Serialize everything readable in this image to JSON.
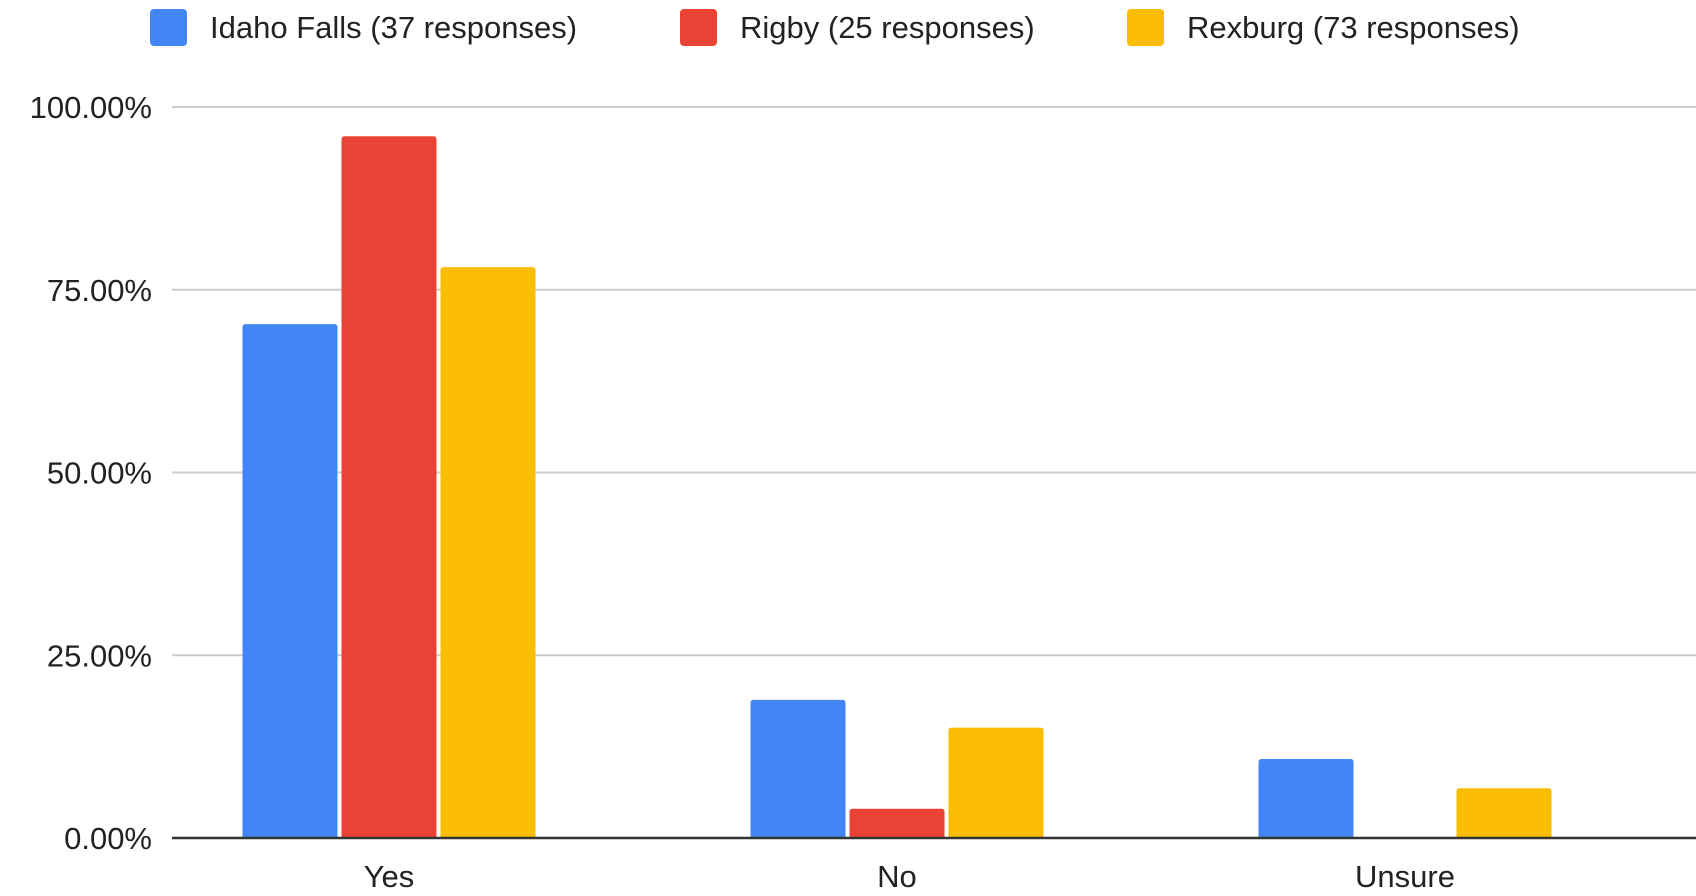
{
  "chart_data": {
    "type": "bar",
    "title": "",
    "xlabel": "",
    "ylabel": "",
    "categories": [
      "Yes",
      "No",
      "Unsure"
    ],
    "series": [
      {
        "name": "Idaho Falls (37 responses)",
        "color": "#4285f4",
        "values": [
          70.3,
          18.9,
          10.8
        ]
      },
      {
        "name": "Rigby (25 responses)",
        "color": "#ea4335",
        "values": [
          96.0,
          4.0,
          0.0
        ]
      },
      {
        "name": "Rexburg (73 responses)",
        "color": "#fbbc04",
        "values": [
          78.1,
          15.1,
          6.8
        ]
      }
    ],
    "ylim": [
      0,
      100
    ],
    "yticks": [
      0,
      25,
      50,
      75,
      100
    ],
    "ytick_labels": [
      "0.00%",
      "25.00%",
      "50.00%",
      "75.00%",
      "100.00%"
    ],
    "grid": true,
    "legend_position": "top"
  }
}
